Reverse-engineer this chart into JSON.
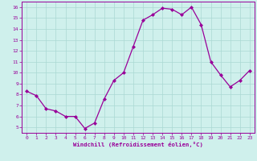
{
  "x": [
    0,
    1,
    2,
    3,
    4,
    5,
    6,
    7,
    8,
    9,
    10,
    11,
    12,
    13,
    14,
    15,
    16,
    17,
    18,
    19,
    20,
    21,
    22,
    23
  ],
  "y": [
    8.3,
    7.9,
    6.7,
    6.5,
    6.0,
    6.0,
    4.9,
    5.4,
    7.6,
    9.3,
    10.0,
    12.4,
    14.8,
    15.3,
    15.9,
    15.8,
    15.3,
    16.0,
    14.4,
    11.0,
    9.8,
    8.7,
    9.3,
    10.2
  ],
  "line_color": "#990099",
  "marker": "D",
  "marker_size": 2,
  "bg_color": "#cff0ec",
  "grid_color": "#aad8d3",
  "tick_color": "#990099",
  "label_color": "#990099",
  "xlabel": "Windchill (Refroidissement éolien,°C)",
  "xlim": [
    -0.5,
    23.5
  ],
  "ylim": [
    4.5,
    16.5
  ],
  "yticks": [
    5,
    6,
    7,
    8,
    9,
    10,
    11,
    12,
    13,
    14,
    15,
    16
  ],
  "xticks": [
    0,
    1,
    2,
    3,
    4,
    5,
    6,
    7,
    8,
    9,
    10,
    11,
    12,
    13,
    14,
    15,
    16,
    17,
    18,
    19,
    20,
    21,
    22,
    23
  ]
}
